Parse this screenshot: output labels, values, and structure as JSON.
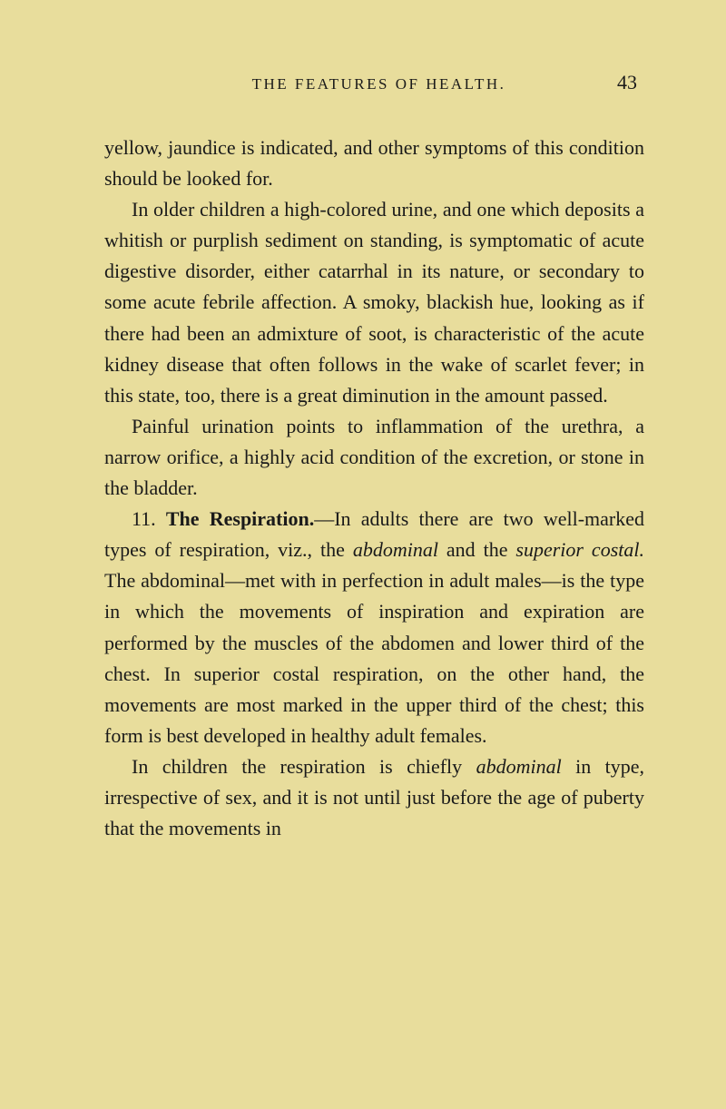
{
  "header": {
    "running_title": "THE FEATURES OF HEALTH.",
    "page_number": "43"
  },
  "paragraphs": {
    "p1": "yellow, jaundice is indicated, and other symptoms of this condition should be looked for.",
    "p2": "In older children a high-colored urine, and one which deposits a whitish or purplish sediment on standing, is symptomatic of acute digestive disorder, either catarrhal in its nature, or secondary to some acute febrile affection. A smoky, blackish hue, looking as if there had been an admixture of soot, is characteristic of the acute kidney disease that often follows in the wake of scarlet fever; in this state, too, there is a great diminution in the amount passed.",
    "p3": "Painful urination points to inflammation of the urethra, a narrow orifice, a highly acid condition of the excretion, or stone in the bladder.",
    "p4_section_num": "11. ",
    "p4_section_title": "The Respiration.",
    "p4_text_a": "—In adults there are two well-marked types of respiration, viz., the ",
    "p4_italic_a": "abdominal",
    "p4_text_b": " and the ",
    "p4_italic_b": "superior costal.",
    "p4_text_c": " The abdominal—met with in perfection in adult males—is the type in which the movements of inspiration and expiration are performed by the muscles of the abdomen and lower third of the chest. In superior costal respiration, on the other hand, the movements are most marked in the upper third of the chest; this form is best developed in healthy adult females.",
    "p5_text_a": "In children the respiration is chiefly ",
    "p5_italic_a": "abdominal",
    "p5_text_b": " in type, irrespective of sex, and it is not until just before the age of puberty that the movements in"
  }
}
